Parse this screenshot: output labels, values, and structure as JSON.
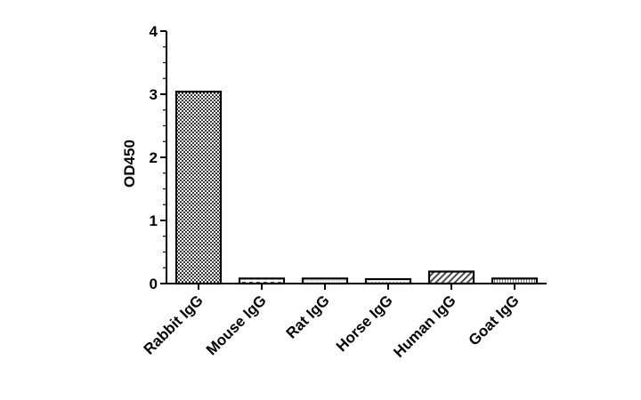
{
  "chart_data": {
    "type": "bar",
    "title": "",
    "xlabel": "",
    "ylabel": "OD450",
    "categories": [
      "Rabbit IgG",
      "Mouse IgG",
      "Rat IgG",
      "Horse IgG",
      "Human IgG",
      "Goat IgG"
    ],
    "values": [
      3.04,
      0.08,
      0.08,
      0.07,
      0.19,
      0.08
    ],
    "ylim": [
      0,
      4
    ],
    "yticks": [
      "0",
      "1",
      "2",
      "3",
      "4"
    ],
    "grid": false,
    "legend": "none"
  }
}
